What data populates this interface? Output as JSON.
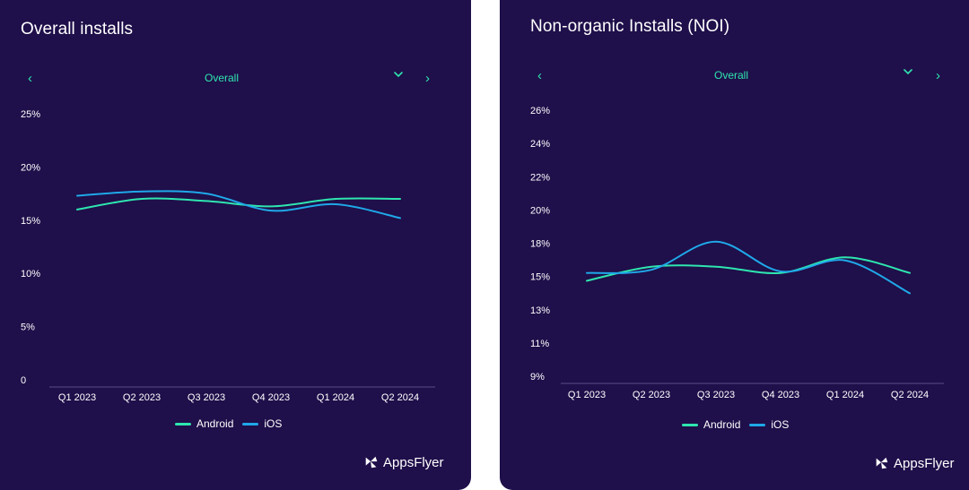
{
  "colors": {
    "background": "#1f0f4a",
    "accent": "#2ee6b0",
    "android": "#2ee6b0",
    "ios": "#1fa8e8",
    "axis": "#5a4d86"
  },
  "panels": [
    {
      "title": "Overall installs",
      "nav": {
        "prev_icon": "chevron-left-icon",
        "label": "Overall",
        "dropdown_icon": "chevron-down-icon",
        "next_icon": "chevron-right-icon"
      },
      "legend": {
        "android": "Android",
        "ios": "iOS"
      },
      "brand": {
        "text": "AppsFlyer",
        "icon": "appsflyer-logo-icon"
      }
    },
    {
      "title": "Non-organic Installs (NOI)",
      "nav": {
        "prev_icon": "chevron-left-icon",
        "label": "Overall",
        "dropdown_icon": "chevron-down-icon",
        "next_icon": "chevron-right-icon"
      },
      "legend": {
        "android": "Android",
        "ios": "iOS"
      },
      "brand": {
        "text": "AppsFlyer",
        "icon": "appsflyer-logo-icon"
      }
    }
  ],
  "chart_data": [
    {
      "type": "line",
      "title": "Overall installs",
      "categories": [
        "Q1 2023",
        "Q2 2023",
        "Q3 2023",
        "Q4 2023",
        "Q1 2024",
        "Q2 2024"
      ],
      "y_ticks": [
        "0",
        "5%",
        "10%",
        "15%",
        "20%",
        "25%"
      ],
      "ylim": [
        0,
        25
      ],
      "series": [
        {
          "name": "Android",
          "values": [
            16.0,
            17.0,
            16.8,
            16.3,
            17.0,
            17.0
          ]
        },
        {
          "name": "iOS",
          "values": [
            17.3,
            17.7,
            17.5,
            15.9,
            16.5,
            15.2
          ]
        }
      ],
      "legend": "bottom-center"
    },
    {
      "type": "line",
      "title": "Non-organic Installs (NOI)",
      "categories": [
        "Q1 2023",
        "Q2 2023",
        "Q3 2023",
        "Q4 2023",
        "Q1 2024",
        "Q2 2024"
      ],
      "y_ticks": [
        "9%",
        "11%",
        "13%",
        "15%",
        "18%",
        "20%",
        "22%",
        "24%",
        "26%"
      ],
      "ylim": [
        9,
        26
      ],
      "series": [
        {
          "name": "Android",
          "values": [
            15.1,
            16.0,
            16.0,
            15.6,
            16.6,
            15.6
          ]
        },
        {
          "name": "iOS",
          "values": [
            15.6,
            15.8,
            17.6,
            15.7,
            16.4,
            14.3
          ]
        }
      ],
      "legend": "bottom-center"
    }
  ]
}
